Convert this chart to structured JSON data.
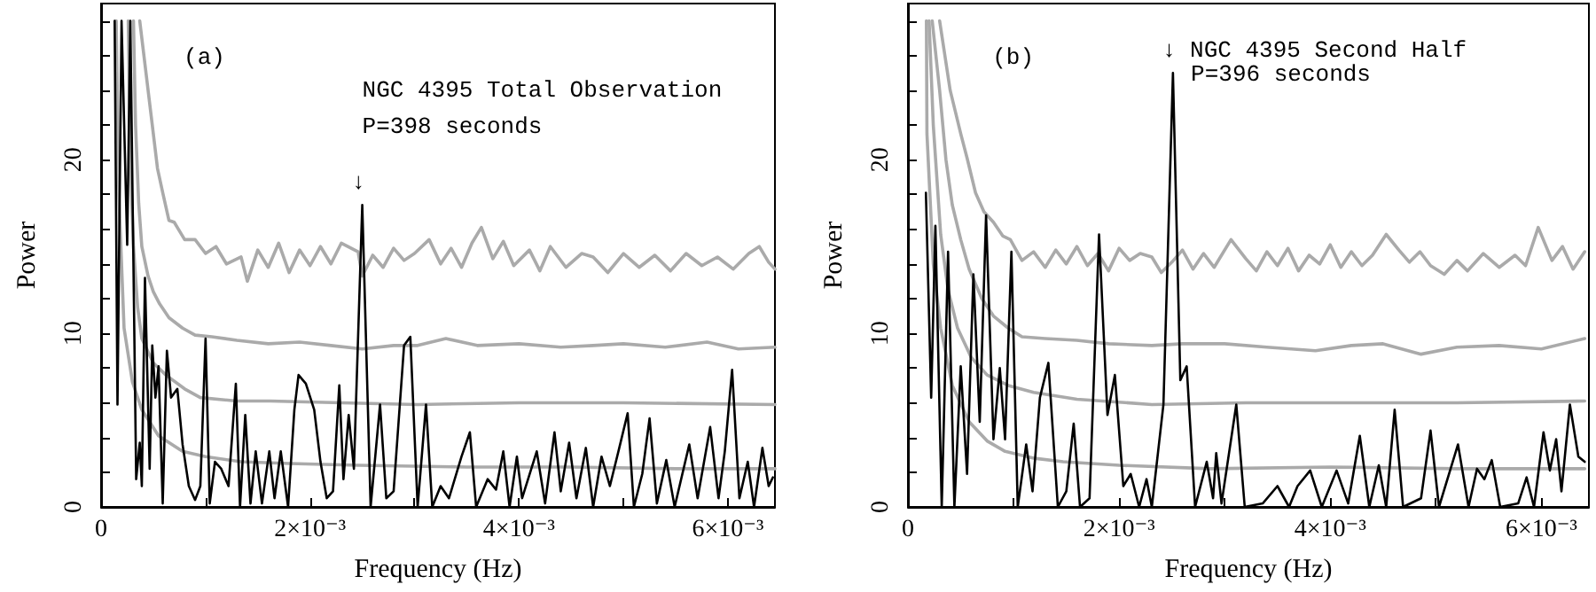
{
  "chart_data": [
    {
      "type": "line",
      "xlabel": "Frequency (Hz)",
      "ylabel": "Power",
      "xlim": [
        0,
        0.00645
      ],
      "ylim": [
        0,
        29
      ],
      "xticks": [
        0,
        {
          "value": 0.001,
          "label": null
        },
        {
          "value": 0.002,
          "label": "2×10⁻³"
        },
        {
          "value": 0.003,
          "label": null
        },
        {
          "value": 0.004,
          "label": "4×10⁻³"
        },
        {
          "value": 0.005,
          "label": null
        },
        {
          "value": 0.006,
          "label": "6×10⁻³"
        }
      ],
      "yticks": [
        0,
        {
          "value": 2,
          "label": null
        },
        {
          "value": 4,
          "label": null
        },
        {
          "value": 6,
          "label": null
        },
        {
          "value": 8,
          "label": null
        },
        10,
        {
          "value": 12,
          "label": null
        },
        {
          "value": 14,
          "label": null
        },
        {
          "value": 16,
          "label": null
        },
        {
          "value": 18,
          "label": null
        },
        20,
        {
          "value": 22,
          "label": null
        },
        {
          "value": 24,
          "label": null
        },
        {
          "value": 26,
          "label": null
        },
        {
          "value": 28,
          "label": null
        }
      ],
      "marker": "none",
      "line_style": "solid",
      "annotations": [
        "(a)",
        "NGC 4395 Total Observation",
        "P=398 seconds",
        {
          "text": "↓",
          "x": 0.0025,
          "y": 17.4
        }
      ],
      "series": [
        {
          "color": "#aaaaaa",
          "x": [
            0.00037,
            0.00042,
            0.00048,
            0.00054,
            0.00059,
            0.00065,
            0.0007,
            0.0008,
            0.0009,
            0.001,
            0.0011,
            0.0012,
            0.00134,
            0.0014,
            0.0015,
            0.0016,
            0.0017,
            0.0018,
            0.0019,
            0.002,
            0.0021,
            0.0022,
            0.0023,
            0.00246,
            0.0025,
            0.0026,
            0.0027,
            0.0028,
            0.0029,
            0.003,
            0.00314,
            0.00325,
            0.00335,
            0.00345,
            0.00355,
            0.00364,
            0.00375,
            0.00385,
            0.00395,
            0.0041,
            0.0042,
            0.0043,
            0.00445,
            0.0046,
            0.00471,
            0.00485,
            0.005,
            0.00515,
            0.0053,
            0.00545,
            0.0056,
            0.00575,
            0.0059,
            0.00605,
            0.0062,
            0.0063,
            0.00639,
            0.00645
          ],
          "values": [
            28,
            25.5,
            22.5,
            19.5,
            18.1,
            16.5,
            16.4,
            15.4,
            15.4,
            14.6,
            15.0,
            14.0,
            14.4,
            13.0,
            14.8,
            13.8,
            15.2,
            13.5,
            14.8,
            13.9,
            15.0,
            14.0,
            15.2,
            14.7,
            13.3,
            14.5,
            13.8,
            14.9,
            14.2,
            14.6,
            15.4,
            14.0,
            14.9,
            13.8,
            15.2,
            16.1,
            14.3,
            15.3,
            13.9,
            14.8,
            13.6,
            15.0,
            13.8,
            14.6,
            14.4,
            13.5,
            14.6,
            13.8,
            14.5,
            13.6,
            14.6,
            13.9,
            14.4,
            13.7,
            14.6,
            15.0,
            14.1,
            13.7
          ]
        },
        {
          "color": "#aaaaaa",
          "x": [
            0.00031,
            0.00033,
            0.00036,
            0.00039,
            0.00045,
            0.0005,
            0.00056,
            0.00065,
            0.00078,
            0.0009,
            0.00106,
            0.0013,
            0.0016,
            0.0019,
            0.0022,
            0.0025,
            0.0028,
            0.00303,
            0.0033,
            0.0036,
            0.004,
            0.0044,
            0.00471,
            0.005,
            0.0054,
            0.0058,
            0.0061,
            0.00645
          ],
          "values": [
            28,
            22,
            17.5,
            15,
            13.3,
            12.4,
            11.7,
            10.9,
            10.3,
            9.9,
            9.8,
            9.6,
            9.4,
            9.5,
            9.3,
            9.1,
            9.3,
            9.3,
            9.7,
            9.3,
            9.4,
            9.2,
            9.3,
            9.4,
            9.2,
            9.5,
            9.1,
            9.2
          ]
        },
        {
          "color": "#aaaaaa",
          "x": [
            0.00026,
            0.00028,
            0.00031,
            0.00035,
            0.00039,
            0.0005,
            0.00062,
            0.0008,
            0.00095,
            0.0013,
            0.00162,
            0.0023,
            0.00303,
            0.004,
            0.005,
            0.00645
          ],
          "values": [
            28,
            20,
            15,
            11.5,
            9.7,
            8.3,
            7.6,
            6.8,
            6.3,
            6.1,
            6.1,
            6.0,
            5.9,
            6.0,
            6.0,
            5.9
          ]
        },
        {
          "color": "#aaaaaa",
          "x": [
            0.000145,
            0.00017,
            0.00022,
            0.0003,
            0.00039,
            0.00055,
            0.00078,
            0.001,
            0.00134,
            0.0018,
            0.00246,
            0.0035,
            0.0045,
            0.0055,
            0.00645
          ],
          "values": [
            28,
            18,
            10.3,
            7.2,
            5.6,
            4.1,
            3.2,
            2.9,
            2.6,
            2.5,
            2.4,
            2.3,
            2.3,
            2.2,
            2.2
          ]
        },
        {
          "color": "#000000",
          "x": [
            0.00013,
            0.000157,
            0.000196,
            0.00025,
            0.00028,
            0.000336,
            0.00037,
            0.00039,
            0.00042,
            0.000465,
            0.00049,
            0.00052,
            0.00055,
            0.00059,
            0.00063,
            0.00067,
            0.00073,
            0.00078,
            0.00084,
            0.0009,
            0.00095,
            0.001,
            0.00104,
            0.00109,
            0.00115,
            0.00122,
            0.00129,
            0.00133,
            0.00138,
            0.00143,
            0.00148,
            0.00154,
            0.00161,
            0.00166,
            0.00172,
            0.00179,
            0.00185,
            0.00189,
            0.00196,
            0.00204,
            0.0021,
            0.00216,
            0.00222,
            0.00228,
            0.00232,
            0.00237,
            0.00242,
            0.0025,
            0.00258,
            0.00267,
            0.00273,
            0.0028,
            0.0029,
            0.00296,
            0.00303,
            0.00311,
            0.00317,
            0.00325,
            0.00333,
            0.00345,
            0.00353,
            0.00359,
            0.0037,
            0.00378,
            0.00385,
            0.00391,
            0.00398,
            0.00403,
            0.00417,
            0.00425,
            0.00434,
            0.0044,
            0.00448,
            0.00455,
            0.00464,
            0.00471,
            0.00479,
            0.00487,
            0.00496,
            0.00504,
            0.0051,
            0.00518,
            0.00525,
            0.00532,
            0.00541,
            0.00549,
            0.00563,
            0.00571,
            0.00583,
            0.00591,
            0.00597,
            0.00604,
            0.00611,
            0.00619,
            0.00625,
            0.00633,
            0.00639,
            0.00643
          ],
          "values": [
            28,
            5.9,
            28,
            15.1,
            28,
            1.6,
            3.7,
            1.2,
            13.2,
            2.2,
            9.3,
            6.3,
            8.1,
            0.2,
            9.0,
            6.3,
            6.8,
            3.6,
            1.2,
            0.4,
            1.2,
            9.7,
            0.2,
            2.6,
            2.2,
            1.2,
            7.1,
            0,
            5.3,
            0.2,
            3.2,
            0.2,
            3.2,
            0.5,
            3.2,
            0,
            5.6,
            7.6,
            7.1,
            5.6,
            2.6,
            0.5,
            0.9,
            7.0,
            1.6,
            5.3,
            2.2,
            17.4,
            0,
            5.9,
            0.5,
            0.9,
            9.3,
            9.8,
            0,
            5.9,
            0,
            1.2,
            0.5,
            2.9,
            4.3,
            0,
            1.6,
            1.0,
            3.2,
            0,
            2.9,
            0.5,
            3.2,
            0.2,
            4.3,
            0.9,
            3.7,
            0.5,
            3.4,
            0,
            2.9,
            1.2,
            3.4,
            5.4,
            0,
            1.9,
            5.1,
            0.2,
            2.7,
            0,
            3.6,
            0.5,
            4.6,
            0.5,
            3.2,
            7.9,
            0.5,
            2.6,
            0,
            3.4,
            1.2,
            1.7
          ]
        }
      ]
    },
    {
      "type": "line",
      "xlabel": "Frequency (Hz)",
      "ylabel": "Power",
      "xlim": [
        0,
        0.00645
      ],
      "ylim": [
        0,
        29
      ],
      "xticks": [
        0,
        {
          "value": 0.001,
          "label": null
        },
        {
          "value": 0.002,
          "label": "2×10⁻³"
        },
        {
          "value": 0.003,
          "label": null
        },
        {
          "value": 0.004,
          "label": "4×10⁻³"
        },
        {
          "value": 0.005,
          "label": null
        },
        {
          "value": 0.006,
          "label": "6×10⁻³"
        }
      ],
      "yticks": [
        0,
        {
          "value": 2,
          "label": null
        },
        {
          "value": 4,
          "label": null
        },
        {
          "value": 6,
          "label": null
        },
        {
          "value": 8,
          "label": null
        },
        10,
        {
          "value": 12,
          "label": null
        },
        {
          "value": 14,
          "label": null
        },
        {
          "value": 16,
          "label": null
        },
        {
          "value": 18,
          "label": null
        },
        20,
        {
          "value": 22,
          "label": null
        },
        {
          "value": 24,
          "label": null
        },
        {
          "value": 26,
          "label": null
        },
        {
          "value": 28,
          "label": null
        }
      ],
      "marker": "none",
      "line_style": "solid",
      "annotations": [
        "(b)",
        "P=396 seconds",
        {
          "text": "↓ NGC 4395 Second Half",
          "x": 0.00251,
          "y": 25.0
        }
      ],
      "series": [
        {
          "color": "#aaaaaa",
          "x": [
            0.0003,
            0.0004,
            0.0005,
            0.00056,
            0.00064,
            0.00072,
            0.00081,
            0.0009,
            0.00097,
            0.00108,
            0.00119,
            0.0013,
            0.0014,
            0.0015,
            0.0016,
            0.0017,
            0.0018,
            0.0019,
            0.002,
            0.0021,
            0.0022,
            0.00231,
            0.0024,
            0.0025,
            0.0026,
            0.0027,
            0.0028,
            0.0029,
            0.00306,
            0.0032,
            0.0033,
            0.0034,
            0.0035,
            0.0036,
            0.0037,
            0.0038,
            0.0039,
            0.004,
            0.0041,
            0.0042,
            0.0043,
            0.0044,
            0.00453,
            0.00465,
            0.00475,
            0.00485,
            0.00495,
            0.00508,
            0.0052,
            0.0053,
            0.00545,
            0.0056,
            0.00575,
            0.00585,
            0.00597,
            0.0061,
            0.0062,
            0.0063,
            0.00641
          ],
          "values": [
            28,
            24,
            21.5,
            20.1,
            18.1,
            17.0,
            16.4,
            15.6,
            15.4,
            14.2,
            14.7,
            13.8,
            14.8,
            14.0,
            15.0,
            13.9,
            14.6,
            13.6,
            14.9,
            14.2,
            14.6,
            14.4,
            13.5,
            14.1,
            14.8,
            13.7,
            14.6,
            13.8,
            15.4,
            14.3,
            13.6,
            14.7,
            13.9,
            14.9,
            13.6,
            14.5,
            14.0,
            15.1,
            13.8,
            14.7,
            13.9,
            14.5,
            15.7,
            14.8,
            14.1,
            14.7,
            13.9,
            13.4,
            14.2,
            13.6,
            14.6,
            13.8,
            14.5,
            13.9,
            16.1,
            14.2,
            15.0,
            13.7,
            14.7
          ]
        },
        {
          "color": "#aaaaaa",
          "x": [
            0.00023,
            0.0003,
            0.00036,
            0.00042,
            0.0005,
            0.00058,
            0.0007,
            0.00081,
            0.00095,
            0.00108,
            0.0013,
            0.0016,
            0.0019,
            0.00231,
            0.0026,
            0.003,
            0.0034,
            0.00386,
            0.0042,
            0.0045,
            0.00486,
            0.0052,
            0.0056,
            0.006,
            0.00641
          ],
          "values": [
            28,
            24,
            20,
            17.4,
            15.4,
            13.7,
            12.0,
            11.0,
            10.3,
            9.8,
            9.7,
            9.6,
            9.4,
            9.3,
            9.4,
            9.4,
            9.2,
            9.0,
            9.3,
            9.4,
            8.8,
            9.2,
            9.3,
            9.1,
            9.7
          ]
        },
        {
          "color": "#aaaaaa",
          "x": [
            0.0002,
            0.00024,
            0.00031,
            0.00038,
            0.00047,
            0.0006,
            0.00075,
            0.00095,
            0.00119,
            0.0016,
            0.00231,
            0.0032,
            0.0042,
            0.0052,
            0.00641
          ],
          "values": [
            28,
            22,
            15.7,
            12.5,
            10.3,
            8.6,
            7.6,
            7.0,
            6.6,
            6.2,
            5.9,
            6.0,
            6.0,
            6.0,
            6.1
          ]
        },
        {
          "color": "#aaaaaa",
          "x": [
            0.000175,
            0.00018,
            0.00024,
            0.00031,
            0.00042,
            0.00058,
            0.00075,
            0.00092,
            0.0012,
            0.00147,
            0.002,
            0.00286,
            0.004,
            0.0052,
            0.00641
          ],
          "values": [
            28,
            21.5,
            14,
            10.3,
            7.0,
            4.9,
            3.8,
            3.2,
            2.8,
            2.6,
            2.4,
            2.2,
            2.3,
            2.2,
            2.2
          ]
        },
        {
          "color": "#000000",
          "x": [
            0.00017,
            0.00022,
            0.00026,
            0.00032,
            0.00038,
            0.00044,
            0.0005,
            0.00056,
            0.00062,
            0.00068,
            0.00074,
            0.00081,
            0.00087,
            0.00092,
            0.00098,
            0.00104,
            0.00112,
            0.00118,
            0.00125,
            0.00133,
            0.00142,
            0.0015,
            0.00157,
            0.00163,
            0.00172,
            0.00181,
            0.00189,
            0.00196,
            0.00204,
            0.00211,
            0.00219,
            0.00226,
            0.00231,
            0.00242,
            0.00251,
            0.00258,
            0.00264,
            0.00272,
            0.00283,
            0.00289,
            0.00292,
            0.00297,
            0.00311,
            0.00319,
            0.00336,
            0.0035,
            0.00361,
            0.00369,
            0.00381,
            0.00392,
            0.00406,
            0.00417,
            0.00428,
            0.00437,
            0.00446,
            0.00453,
            0.00461,
            0.00469,
            0.00486,
            0.00495,
            0.00503,
            0.00521,
            0.00531,
            0.00539,
            0.00546,
            0.00553,
            0.00561,
            0.00578,
            0.00586,
            0.00593,
            0.00602,
            0.00608,
            0.00614,
            0.00619,
            0.00627,
            0.00635,
            0.00641
          ],
          "values": [
            18.1,
            6.3,
            16.2,
            0,
            14.7,
            0,
            8.1,
            1.9,
            13.4,
            4.9,
            16.8,
            3.9,
            8.0,
            3.9,
            14.7,
            0,
            3.6,
            0.9,
            6.3,
            8.3,
            0,
            0.9,
            4.8,
            0,
            0.5,
            15.7,
            5.3,
            7.6,
            1.2,
            1.9,
            0,
            1.6,
            0,
            5.9,
            25.0,
            7.3,
            8.1,
            0,
            2.6,
            0.5,
            3.1,
            0.2,
            5.9,
            0,
            0.2,
            1.2,
            0,
            1.2,
            2.1,
            0,
            2.1,
            0.2,
            4.1,
            0,
            2.4,
            0,
            5.6,
            0,
            0.5,
            4.4,
            0,
            3.6,
            0,
            2.2,
            1.6,
            2.7,
            0,
            0.2,
            1.7,
            0,
            4.3,
            2.1,
            3.9,
            0.9,
            5.9,
            2.9,
            2.6
          ]
        }
      ]
    }
  ]
}
